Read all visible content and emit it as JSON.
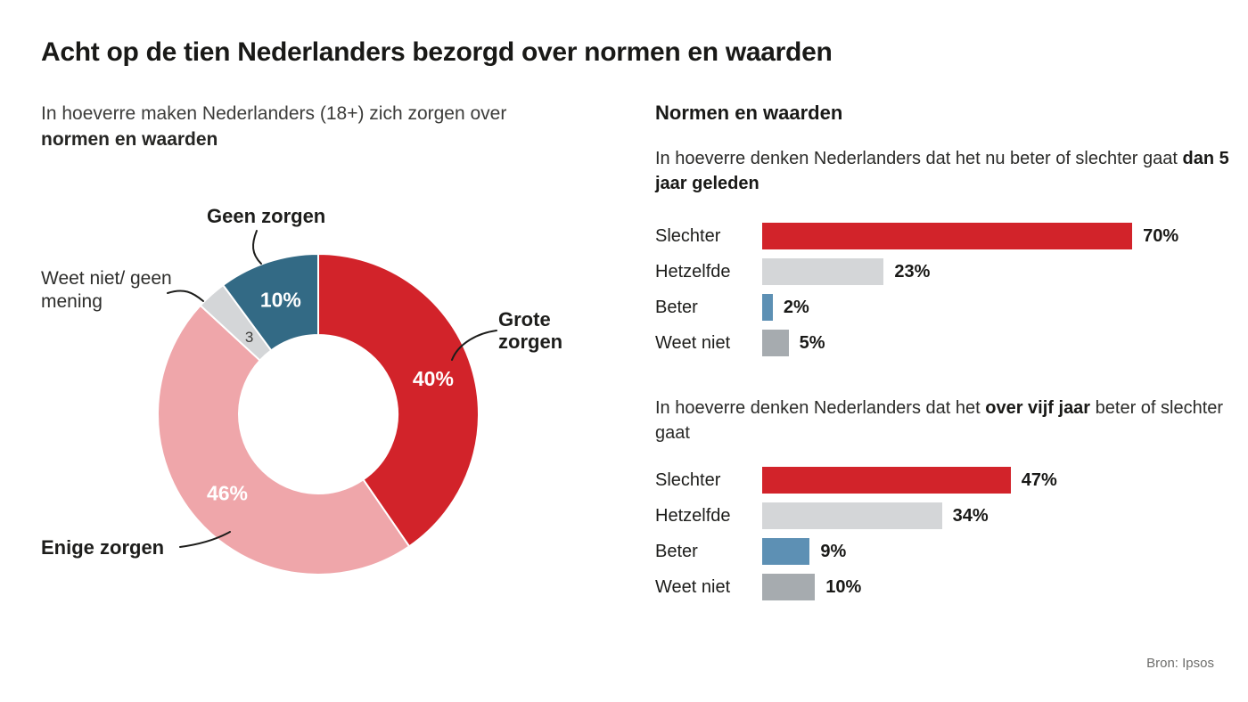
{
  "title": "Acht op de tien Nederlanders bezorgd over normen en waarden",
  "left": {
    "subtitle_prefix": "In hoeverre maken Nederlanders (18+) zich zorgen over ",
    "subtitle_bold": "normen en waarden"
  },
  "right": {
    "heading": "Normen en waarden",
    "q1": {
      "prefix": "In hoeverre denken Nederlanders dat het nu beter of slechter gaat ",
      "bold": "dan 5 jaar geleden",
      "suffix": ""
    },
    "q2": {
      "prefix": "In hoeverre denken Nederlanders dat het ",
      "bold": "over vijf jaar",
      "suffix": " beter of slechter gaat"
    }
  },
  "source": "Bron: Ipsos",
  "colors": {
    "red": "#d2232a",
    "pink": "#efa6aa",
    "light_gray": "#d4d6d8",
    "dark_blue": "#336a85",
    "bar_blue": "#5d90b4",
    "mid_gray": "#a6abaf",
    "text_dark": "#1d1d1b"
  },
  "chart_data": [
    {
      "type": "pie",
      "title": "In hoeverre maken Nederlanders (18+) zich zorgen over normen en waarden",
      "donut": true,
      "segments": [
        {
          "label": "Grote zorgen",
          "value": 40,
          "value_label": "40%",
          "color": "#d2232a",
          "text_color": "#ffffff"
        },
        {
          "label": "Enige zorgen",
          "value": 46,
          "value_label": "46%",
          "color": "#efa6aa",
          "text_color": "#ffffff"
        },
        {
          "label": "Weet niet/ geen mening",
          "value": 3,
          "value_label": "3",
          "color": "#d4d6d8",
          "text_color": "#3c3c3a"
        },
        {
          "label": "Geen zorgen",
          "value": 10,
          "value_label": "10%",
          "color": "#336a85",
          "text_color": "#ffffff"
        }
      ],
      "start_angle_deg": 0,
      "clockwise": true
    },
    {
      "type": "bar",
      "title": "In hoeverre denken Nederlanders dat het nu beter of slechter gaat dan 5 jaar geleden",
      "orientation": "horizontal",
      "categories": [
        "Slechter",
        "Hetzelfde",
        "Beter",
        "Weet niet"
      ],
      "values": [
        70,
        23,
        2,
        5
      ],
      "value_labels": [
        "70%",
        "23%",
        "2%",
        "5%"
      ],
      "colors": [
        "#d2232a",
        "#d4d6d8",
        "#5d90b4",
        "#a6abaf"
      ],
      "xlim": [
        0,
        100
      ]
    },
    {
      "type": "bar",
      "title": "In hoeverre denken Nederlanders dat het over vijf jaar beter of slechter gaat",
      "orientation": "horizontal",
      "categories": [
        "Slechter",
        "Hetzelfde",
        "Beter",
        "Weet niet"
      ],
      "values": [
        47,
        34,
        9,
        10
      ],
      "value_labels": [
        "47%",
        "34%",
        "9%",
        "10%"
      ],
      "colors": [
        "#d2232a",
        "#d4d6d8",
        "#5d90b4",
        "#a6abaf"
      ],
      "xlim": [
        0,
        100
      ]
    }
  ]
}
